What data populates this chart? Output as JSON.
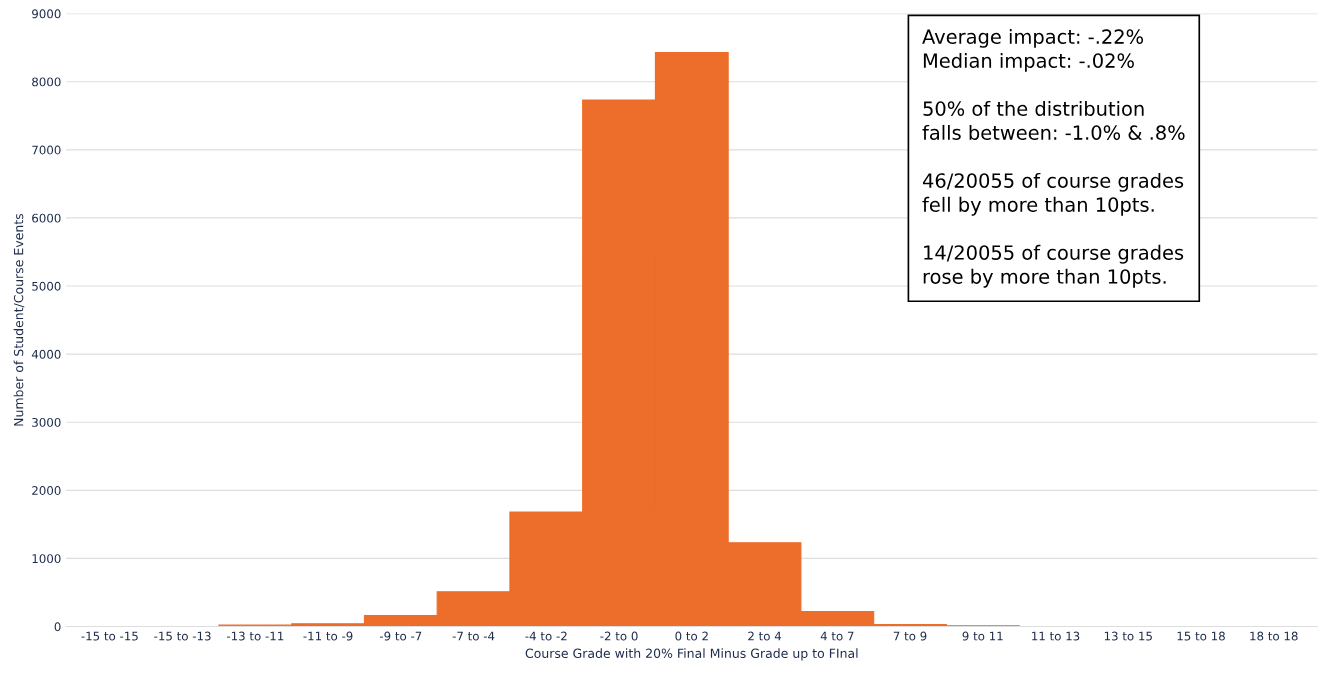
{
  "chart_data": {
    "type": "bar",
    "xlabel": "Course Grade with 20% Final Minus Grade up to FInal",
    "ylabel": "Number of Student/Course Events",
    "categories": [
      "-15 to -15",
      "-15 to -13",
      "-13 to -11",
      "-11 to -9",
      "-9 to -7",
      "-7 to -4",
      "-4 to -2",
      "-2 to 0",
      "0 to 2",
      "2 to 4",
      "4 to 7",
      "7 to 9",
      "9 to 11",
      "11 to 13",
      "13 to 15",
      "15 to 18",
      "18 to 18"
    ],
    "values": [
      0,
      0,
      20,
      40,
      160,
      510,
      1680,
      7730,
      8430,
      1230,
      220,
      30,
      10,
      0,
      0,
      0,
      0
    ],
    "color": "#ed6d2b",
    "ylim": [
      0,
      9000
    ],
    "yticks": [
      0,
      1000,
      2000,
      3000,
      4000,
      5000,
      6000,
      7000,
      8000,
      9000
    ],
    "grid": "y",
    "annotations": [
      "Average impact: -.22%\nMedian impact: -.02%\n\n50% of the distribution\nfalls between: -1.0% & .8%\n\n46/20055 of course grades\nfell by more than 10pts.\n\n14/20055 of course grades\nrose by more than 10pts."
    ]
  }
}
